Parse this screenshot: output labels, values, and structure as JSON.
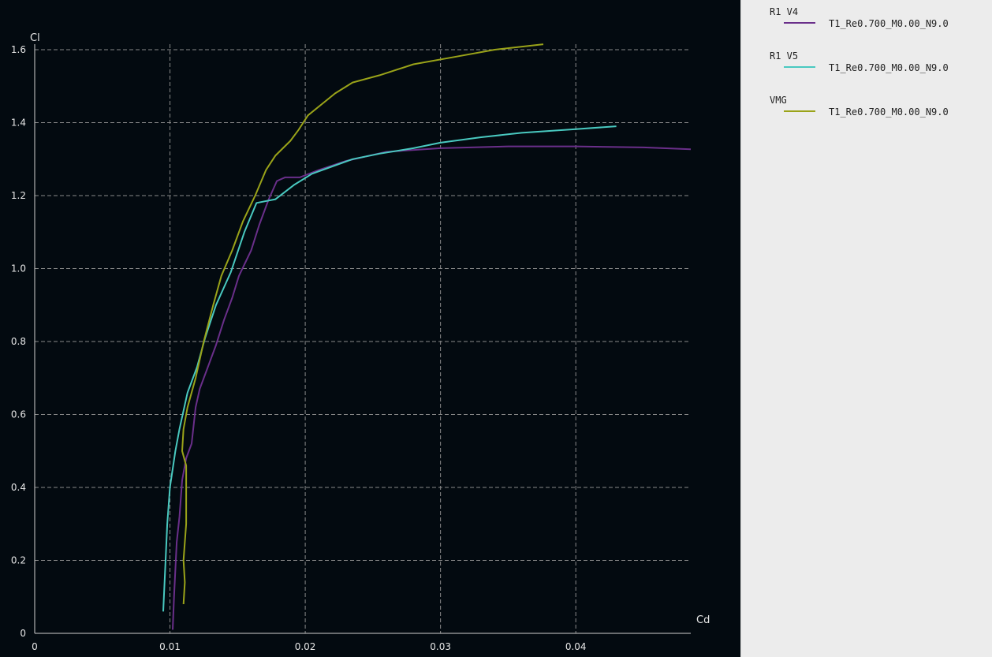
{
  "chart_data": {
    "type": "line",
    "xlabel": "Cd",
    "ylabel": "Cl",
    "xlim": [
      0,
      0.0485
    ],
    "ylim": [
      0,
      1.6
    ],
    "grid": true,
    "x_ticks": [
      0,
      0.01,
      0.02,
      0.03,
      0.04
    ],
    "x_tick_labels": [
      "0",
      "0.01",
      "0.02",
      "0.03",
      "0.04"
    ],
    "y_ticks": [
      0,
      0.2,
      0.4,
      0.6,
      0.8,
      1.0,
      1.2,
      1.4,
      1.6
    ],
    "y_tick_labels": [
      "0",
      "0.2",
      "0.4",
      "0.6",
      "0.8",
      "1.0",
      "1.2",
      "1.4",
      "1.6"
    ],
    "legend_position": "right panel",
    "series": [
      {
        "name": "R1 V4",
        "label": "T1_Re0.700_M0.00_N9.0",
        "color": "#6a2f8a",
        "points": [
          [
            0.0102,
            0.01
          ],
          [
            0.0103,
            0.1
          ],
          [
            0.0105,
            0.25
          ],
          [
            0.0107,
            0.32
          ],
          [
            0.0109,
            0.42
          ],
          [
            0.0112,
            0.48
          ],
          [
            0.0116,
            0.52
          ],
          [
            0.0119,
            0.62
          ],
          [
            0.0122,
            0.67
          ],
          [
            0.0129,
            0.74
          ],
          [
            0.0134,
            0.79
          ],
          [
            0.014,
            0.86
          ],
          [
            0.0146,
            0.92
          ],
          [
            0.0151,
            0.98
          ],
          [
            0.016,
            1.05
          ],
          [
            0.0166,
            1.12
          ],
          [
            0.0173,
            1.19
          ],
          [
            0.0179,
            1.24
          ],
          [
            0.0185,
            1.25
          ],
          [
            0.0196,
            1.25
          ],
          [
            0.021,
            1.27
          ],
          [
            0.023,
            1.295
          ],
          [
            0.026,
            1.32
          ],
          [
            0.03,
            1.33
          ],
          [
            0.035,
            1.335
          ],
          [
            0.04,
            1.335
          ],
          [
            0.045,
            1.332
          ],
          [
            0.0485,
            1.327
          ]
        ]
      },
      {
        "name": "R1 V5",
        "label": "T1_Re0.700_M0.00_N9.0",
        "color": "#49c9c0",
        "points": [
          [
            0.0095,
            0.06
          ],
          [
            0.0098,
            0.3
          ],
          [
            0.01,
            0.4
          ],
          [
            0.0104,
            0.5
          ],
          [
            0.0107,
            0.56
          ],
          [
            0.0113,
            0.66
          ],
          [
            0.012,
            0.73
          ],
          [
            0.0126,
            0.81
          ],
          [
            0.0134,
            0.9
          ],
          [
            0.0145,
            0.99
          ],
          [
            0.0155,
            1.1
          ],
          [
            0.0164,
            1.18
          ],
          [
            0.0178,
            1.19
          ],
          [
            0.0192,
            1.23
          ],
          [
            0.0205,
            1.26
          ],
          [
            0.022,
            1.28
          ],
          [
            0.0235,
            1.3
          ],
          [
            0.0255,
            1.315
          ],
          [
            0.028,
            1.33
          ],
          [
            0.03,
            1.345
          ],
          [
            0.033,
            1.36
          ],
          [
            0.036,
            1.372
          ],
          [
            0.04,
            1.382
          ],
          [
            0.043,
            1.39
          ]
        ]
      },
      {
        "name": "VMG",
        "label": "T1_Re0.700_M0.00_N9.0",
        "color": "#9aa319",
        "points": [
          [
            0.011,
            0.08
          ],
          [
            0.0111,
            0.14
          ],
          [
            0.011,
            0.2
          ],
          [
            0.0112,
            0.3
          ],
          [
            0.0112,
            0.4
          ],
          [
            0.0112,
            0.46
          ],
          [
            0.0109,
            0.5
          ],
          [
            0.011,
            0.56
          ],
          [
            0.0113,
            0.62
          ],
          [
            0.0119,
            0.7
          ],
          [
            0.0125,
            0.8
          ],
          [
            0.0132,
            0.9
          ],
          [
            0.0138,
            0.98
          ],
          [
            0.0146,
            1.05
          ],
          [
            0.0154,
            1.13
          ],
          [
            0.0163,
            1.2
          ],
          [
            0.0171,
            1.27
          ],
          [
            0.0178,
            1.31
          ],
          [
            0.0189,
            1.35
          ],
          [
            0.0195,
            1.38
          ],
          [
            0.0202,
            1.42
          ],
          [
            0.0212,
            1.45
          ],
          [
            0.0222,
            1.48
          ],
          [
            0.0235,
            1.51
          ],
          [
            0.0255,
            1.53
          ],
          [
            0.028,
            1.56
          ],
          [
            0.031,
            1.58
          ],
          [
            0.034,
            1.6
          ],
          [
            0.0376,
            1.615
          ]
        ]
      }
    ]
  }
}
